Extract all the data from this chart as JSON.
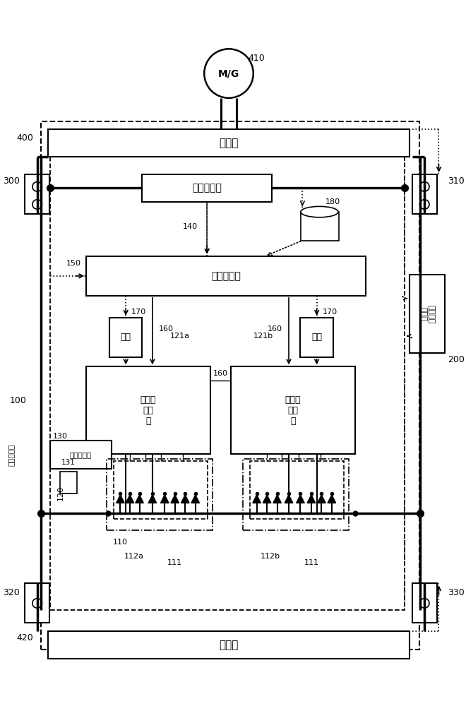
{
  "bg_color": "#ffffff",
  "fig_width": 6.6,
  "fig_height": 10.0,
  "labels": {
    "MG": "M/G",
    "inverter": "逆变路",
    "battery_mgmt": "电池管理部",
    "battery_ctrl_a": "蓄电池\n控制\n部",
    "battery_ctrl_b": "蓄电池\n控制\n部",
    "battery_status": "电池状态部",
    "current_detect": "电流检测部",
    "vehicle_ctrl": "车辆系统\n控制部",
    "charger": "充电路",
    "insulation": "绝缘",
    "current_correction": "电流修正部",
    "n100": "100",
    "n110": "110",
    "n111a": "111",
    "n111b": "111",
    "n112a": "112a",
    "n112b": "112b",
    "n120": "120",
    "n121a": "121a",
    "n121b": "121b",
    "n130": "130",
    "n131": "131",
    "n140": "140",
    "n150": "150",
    "n160a": "160",
    "n160b": "160",
    "n160c": "160",
    "n170l": "170",
    "n170r": "170",
    "n180": "180",
    "n200": "200",
    "n300": "300",
    "n310": "310",
    "n320": "320",
    "n330": "330",
    "n400": "400",
    "n410": "410",
    "n420": "420"
  }
}
